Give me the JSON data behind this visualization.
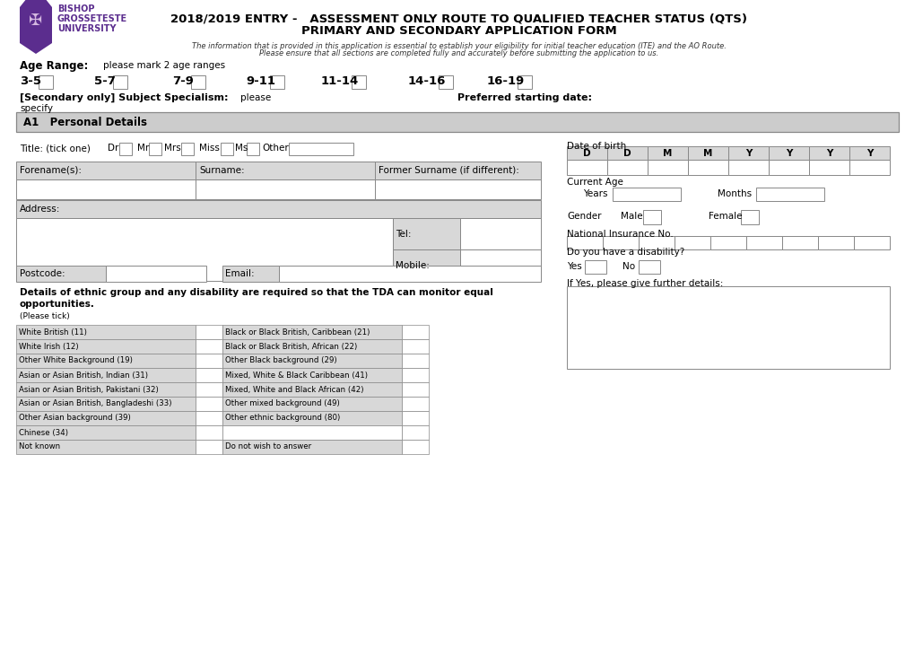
{
  "title_line1": "2018/2019 ENTRY -   ASSESSMENT ONLY ROUTE TO QUALIFIED TEACHER STATUS (QTS)",
  "title_line2": "PRIMARY AND SECONDARY APPLICATION FORM",
  "subtitle1": "The information that is provided in this application is essential to establish your eligibility for initial teacher education (ITE) and the AO Route.",
  "subtitle2": "Please ensure that all sections are completed fully and accurately before submitting the application to us.",
  "age_range_label": "Age Range:",
  "age_range_sub": "please mark 2 age ranges",
  "age_ranges": [
    "3-5",
    "5-7",
    "7-9",
    "9-11",
    "11-14",
    "14-16",
    "16-19"
  ],
  "secondary_label": "[Secondary only] Subject Specialism:",
  "secondary_please": "please",
  "secondary_specify": "specify",
  "preferred_date_label": "Preferred starting date:",
  "section_header": "A1   Personal Details",
  "header_bg": "#cccccc",
  "table_bg": "#dcdcdc",
  "title_tick_label": "Title: (tick one)",
  "title_options": [
    "Dr",
    "Mr",
    "Mrs",
    "Miss",
    "Ms",
    "Other"
  ],
  "dob_label": "Date of birth",
  "dob_cells": [
    "D",
    "D",
    "M",
    "M",
    "Y",
    "Y",
    "Y",
    "Y"
  ],
  "current_age_label": "Current Age",
  "years_label": "Years",
  "months_label": "Months",
  "gender_label": "Gender",
  "male_label": "Male",
  "female_label": "Female",
  "ni_label": "National Insurance No.",
  "disability_label": "Do you have a disability?",
  "yes_label": "Yes",
  "no_label": "No",
  "further_label": "If Yes, please give further details:",
  "forename_label": "Forename(s):",
  "surname_label": "Surname:",
  "former_label": "Former Surname (if different):",
  "address_label": "Address:",
  "tel_label": "Tel:",
  "mobile_label": "Mobile:",
  "postcode_label": "Postcode:",
  "email_label": "Email:",
  "ethnic_line1": "Details of ethnic group and any disability are required so that the TDA can monitor equal",
  "ethnic_line2": "opportunities.",
  "ethnic_tick": "(Please tick)",
  "ethnic_col1": [
    "White British (11)",
    "White Irish (12)",
    "Other White Background (19)",
    "Asian or Asian British, Indian (31)",
    "Asian or Asian British, Pakistani (32)",
    "Asian or Asian British, Bangladeshi (33)",
    "Other Asian background (39)",
    "Chinese (34)",
    "Not known"
  ],
  "ethnic_col2": [
    "Black or Black British, Caribbean (21)",
    "Black or Black British, African (22)",
    "Other Black background (29)",
    "Mixed, White & Black Caribbean (41)",
    "Mixed, White and Black African (42)",
    "Other mixed background (49)",
    "Other ethnic background (80)",
    "",
    "Do not wish to answer"
  ],
  "purple": "#5b2d8e",
  "white": "#ffffff",
  "black": "#000000",
  "gray_border": "#888888",
  "light_gray": "#d8d8d8"
}
